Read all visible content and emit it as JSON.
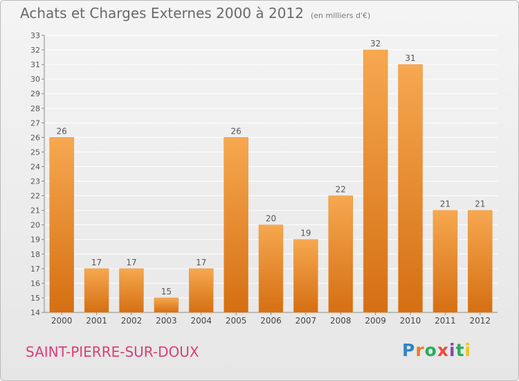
{
  "header": {
    "title": "Achats et Charges Externes 2000 à 2012",
    "subtitle": "(en milliers d'€)"
  },
  "footer": {
    "commune": "SAINT-PIERRE-SUR-DOUX",
    "logo_text": "Proxiti"
  },
  "colors": {
    "bar_top": "#f6a850",
    "bar_bottom": "#d56f12",
    "axis": "#8a8a8a",
    "grid": "#ffffff",
    "title": "#6a6a6a",
    "commune": "#d8407a"
  },
  "chart_data": {
    "type": "bar",
    "title": "Achats et Charges Externes 2000 à 2012",
    "subtitle": "(en milliers d'€)",
    "xlabel": "",
    "ylabel": "",
    "categories": [
      "2000",
      "2001",
      "2002",
      "2003",
      "2004",
      "2005",
      "2006",
      "2007",
      "2008",
      "2009",
      "2010",
      "2011",
      "2012"
    ],
    "values": [
      26,
      17,
      17,
      15,
      17,
      26,
      20,
      19,
      22,
      32,
      31,
      21,
      21
    ],
    "ylim": [
      14,
      33
    ],
    "yticks": [
      14,
      15,
      16,
      17,
      18,
      19,
      20,
      21,
      22,
      23,
      24,
      25,
      26,
      27,
      28,
      29,
      30,
      31,
      32,
      33
    ],
    "grid": true,
    "legend": "none"
  }
}
